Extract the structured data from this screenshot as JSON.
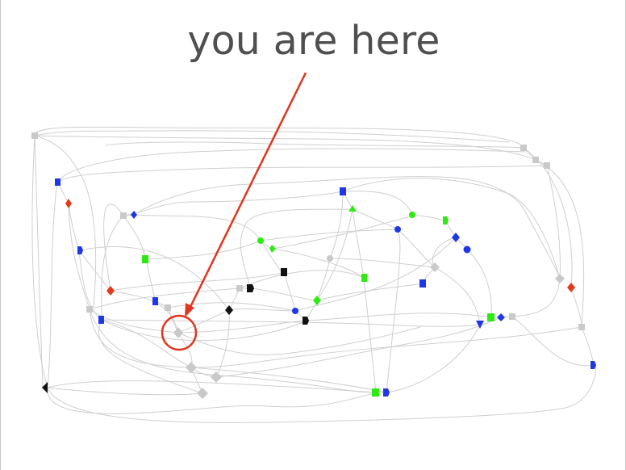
{
  "slide": {
    "title": "you are here",
    "colors": {
      "title": "#4f4f4f",
      "arrow": "#e0351e",
      "edge": "#cfcfcf",
      "node_gray": "#c9c9c9",
      "node_blue": "#1f37e6",
      "node_green": "#2eea13",
      "node_red": "#e23a1c",
      "node_black": "#111111"
    }
  }
}
